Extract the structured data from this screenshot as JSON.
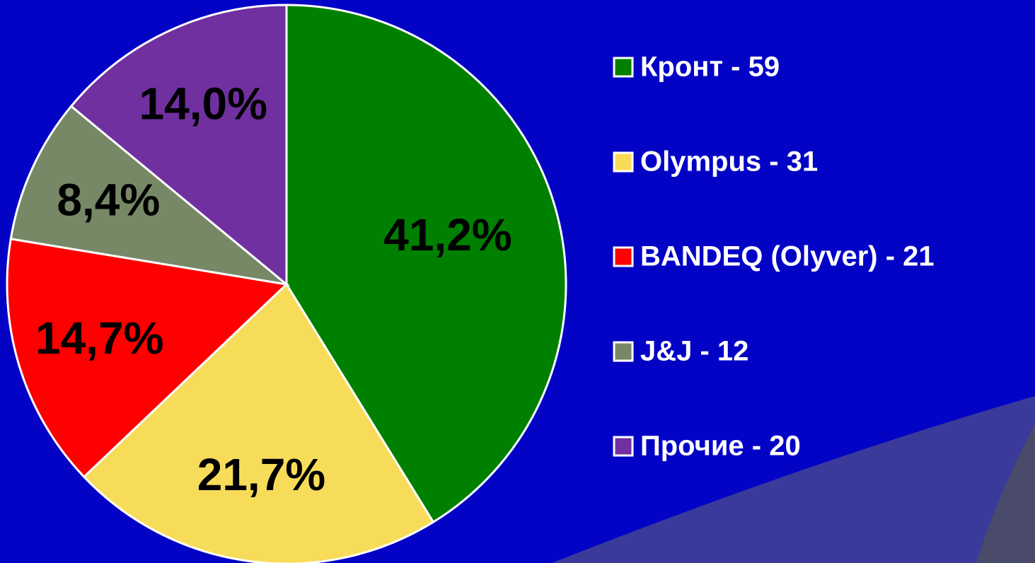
{
  "chart_data": {
    "type": "pie",
    "categories": [
      "Кронт - 59",
      "Olympus - 31",
      "BANDEQ (Olyver) - 21",
      "J&J - 12",
      "Прочие - 20"
    ],
    "values": [
      41.2,
      21.7,
      14.7,
      8.4,
      14.0
    ],
    "value_labels": [
      "41,2%",
      "21,7%",
      "14,7%",
      "8,4%",
      "14,0%"
    ],
    "colors": [
      "#008000",
      "#f7dc5a",
      "#ff0000",
      "#778866",
      "#7030a0"
    ],
    "legend": "right"
  }
}
